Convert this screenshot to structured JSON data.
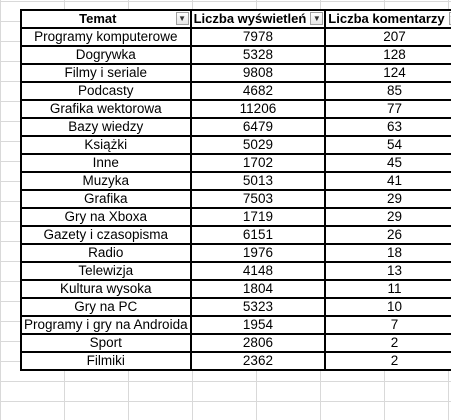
{
  "table": {
    "headers": [
      "Temat",
      "Liczba wyświetleń",
      "Liczba komentarzy"
    ],
    "filter_icons": [
      "filter-dropdown-icon",
      "filter-dropdown-icon",
      "sort-descending-icon"
    ],
    "rows": [
      [
        "Programy komputerowe",
        "7978",
        "207"
      ],
      [
        "Dogrywka",
        "5328",
        "128"
      ],
      [
        "Filmy i seriale",
        "9808",
        "124"
      ],
      [
        "Podcasty",
        "4682",
        "85"
      ],
      [
        "Grafika wektorowa",
        "11206",
        "77"
      ],
      [
        "Bazy wiedzy",
        "6479",
        "63"
      ],
      [
        "Książki",
        "5029",
        "54"
      ],
      [
        "Inne",
        "1702",
        "45"
      ],
      [
        "Muzyka",
        "5013",
        "41"
      ],
      [
        "Grafika",
        "7503",
        "29"
      ],
      [
        "Gry na Xboxa",
        "1719",
        "29"
      ],
      [
        "Gazety i czasopisma",
        "6151",
        "26"
      ],
      [
        "Radio",
        "1976",
        "18"
      ],
      [
        "Telewizja",
        "4148",
        "13"
      ],
      [
        "Kultura wysoka",
        "1804",
        "11"
      ],
      [
        "Gry na PC",
        "5323",
        "10"
      ],
      [
        "Programy i gry na Androida",
        "1954",
        "7"
      ],
      [
        "Sport",
        "2806",
        "2"
      ],
      [
        "Filmiki",
        "2362",
        "2"
      ]
    ]
  }
}
